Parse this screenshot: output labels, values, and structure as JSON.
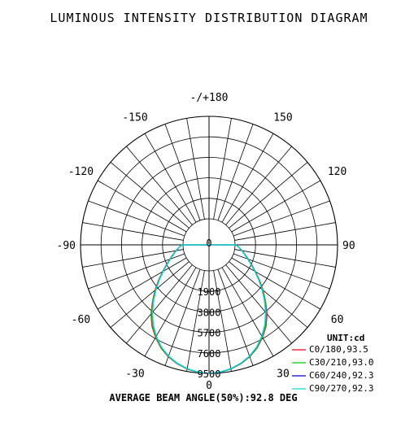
{
  "chart_data": {
    "type": "polar",
    "title": "LUMINOUS INTENSITY DISTRIBUTION DIAGRAM",
    "angle_labels": [
      {
        "deg": 180,
        "text": "-/+180"
      },
      {
        "deg": -150,
        "text": "-150"
      },
      {
        "deg": 150,
        "text": "150"
      },
      {
        "deg": -120,
        "text": "-120"
      },
      {
        "deg": 120,
        "text": "120"
      },
      {
        "deg": -90,
        "text": "-90"
      },
      {
        "deg": 90,
        "text": "90"
      },
      {
        "deg": -60,
        "text": "-60"
      },
      {
        "deg": 60,
        "text": "60"
      },
      {
        "deg": -30,
        "text": "-30"
      },
      {
        "deg": 30,
        "text": "30"
      },
      {
        "deg": 0,
        "text": "0"
      }
    ],
    "radial_labels": [
      "0",
      "1900",
      "3800",
      "5700",
      "7600",
      "9500"
    ],
    "radial_ticks": [
      0,
      1900,
      3800,
      5700,
      7600,
      9500
    ],
    "radial_max": 9500,
    "grid": true,
    "unit_label": "UNIT:cd",
    "beam_angle_text": "AVERAGE BEAM ANGLE(50%):92.8 DEG",
    "angles_deg": [
      0,
      5,
      10,
      15,
      20,
      25,
      30,
      35,
      40,
      45,
      50,
      55,
      60,
      65,
      70,
      75,
      80,
      85,
      90
    ],
    "series": [
      {
        "name": "C0/180,93.5",
        "color": "#ff0000",
        "values": [
          9500,
          9440,
          9280,
          9000,
          8630,
          8140,
          7500,
          6800,
          5950,
          5000,
          4120,
          3300,
          2560,
          1960,
          1450,
          1050,
          700,
          400,
          80
        ]
      },
      {
        "name": "C30/210,93.0",
        "color": "#00cc00",
        "values": [
          9500,
          9430,
          9260,
          8980,
          8600,
          8100,
          7450,
          6720,
          5860,
          4950,
          4060,
          3250,
          2520,
          1920,
          1420,
          1020,
          680,
          390,
          80
        ]
      },
      {
        "name": "C60/240,92.3",
        "color": "#0000cc",
        "values": [
          9500,
          9420,
          9240,
          8950,
          8560,
          8040,
          7380,
          6620,
          5760,
          4860,
          4000,
          3200,
          2480,
          1890,
          1400,
          1000,
          670,
          380,
          80
        ]
      },
      {
        "name": "C90/270,92.3",
        "color": "#00e0e0",
        "values": [
          9500,
          9420,
          9240,
          8950,
          8560,
          8040,
          7380,
          6620,
          5760,
          4860,
          4000,
          3200,
          2480,
          1890,
          1400,
          1000,
          670,
          380,
          80
        ]
      }
    ]
  }
}
